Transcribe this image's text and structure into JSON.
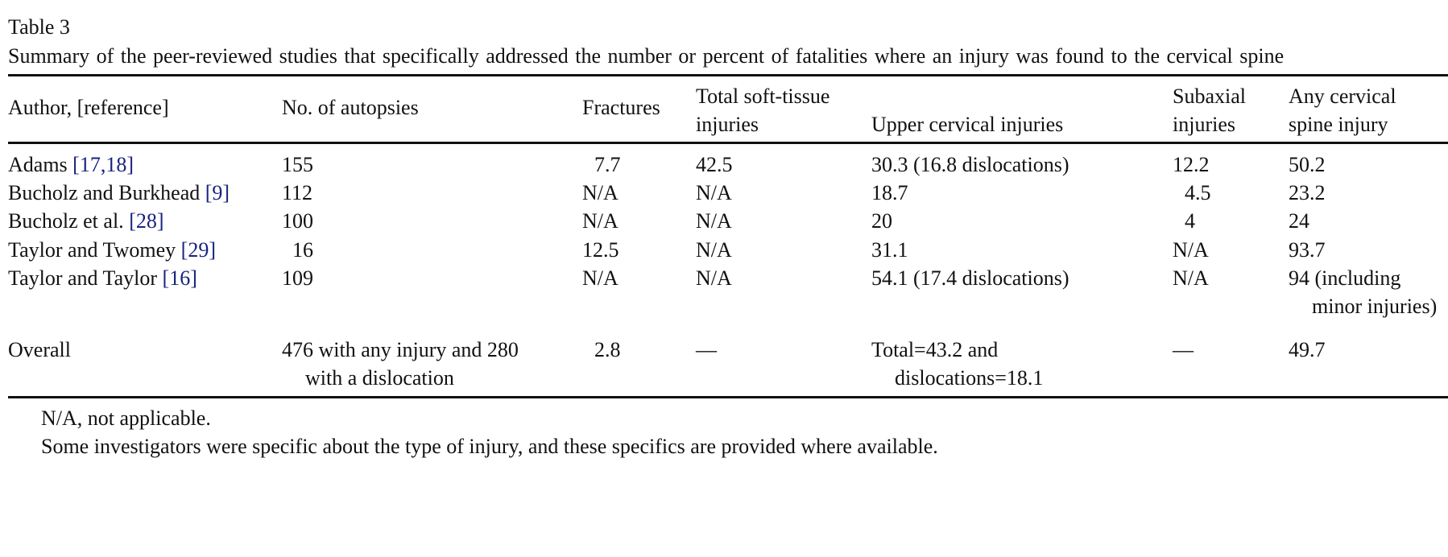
{
  "table": {
    "label": "Table 3",
    "caption": "Summary of the peer-reviewed studies that specifically addressed the number or percent of fatalities where an injury was found to the cervical spine",
    "headers": {
      "author": "Author, [reference]",
      "autopsies": "No. of autopsies",
      "fractures": "Fractures",
      "soft_tissue_1": "Total soft-tissue",
      "soft_tissue_2": "injuries",
      "upper": "Upper cervical injuries",
      "subaxial_1": "Subaxial",
      "subaxial_2": "injuries",
      "any_1": "Any cervical",
      "any_2": "spine injury"
    },
    "rows": [
      {
        "author": "Adams ",
        "ref": "[17,18]",
        "autopsies": "155",
        "fractures": "7.7",
        "soft_tissue": "42.5",
        "upper": "30.3 (16.8 dislocations)",
        "subaxial": "12.2",
        "any": "50.2"
      },
      {
        "author": "Bucholz and Burkhead ",
        "ref": "[9]",
        "autopsies": "112",
        "fractures": "N/A",
        "soft_tissue": "N/A",
        "upper": "18.7",
        "subaxial": "4.5",
        "any": "23.2"
      },
      {
        "author": "Bucholz et al. ",
        "ref": "[28]",
        "autopsies": "100",
        "fractures": "N/A",
        "soft_tissue": "N/A",
        "upper": "20",
        "subaxial": "4",
        "any": "24"
      },
      {
        "author": "Taylor and Twomey ",
        "ref": "[29]",
        "autopsies": "16",
        "fractures": "12.5",
        "soft_tissue": "N/A",
        "upper": "31.1",
        "subaxial": "N/A",
        "any": "93.7"
      },
      {
        "author": "Taylor and Taylor ",
        "ref": "[16]",
        "autopsies": "109",
        "fractures": "N/A",
        "soft_tissue": "N/A",
        "upper": "54.1 (17.4 dislocations)",
        "subaxial": "N/A",
        "any_1": "94 (including",
        "any_2": "minor injuries)"
      }
    ],
    "overall": {
      "author": "Overall",
      "autopsies_1": "476 with any injury and 280",
      "autopsies_2": "with a dislocation",
      "fractures": "2.8",
      "soft_tissue": "—",
      "upper_1": "Total=43.2 and",
      "upper_2": "dislocations=18.1",
      "subaxial": "—",
      "any": "49.7"
    },
    "footnotes": [
      "N/A, not applicable.",
      "Some investigators were specific about the type of injury, and these specifics are provided where available."
    ]
  }
}
